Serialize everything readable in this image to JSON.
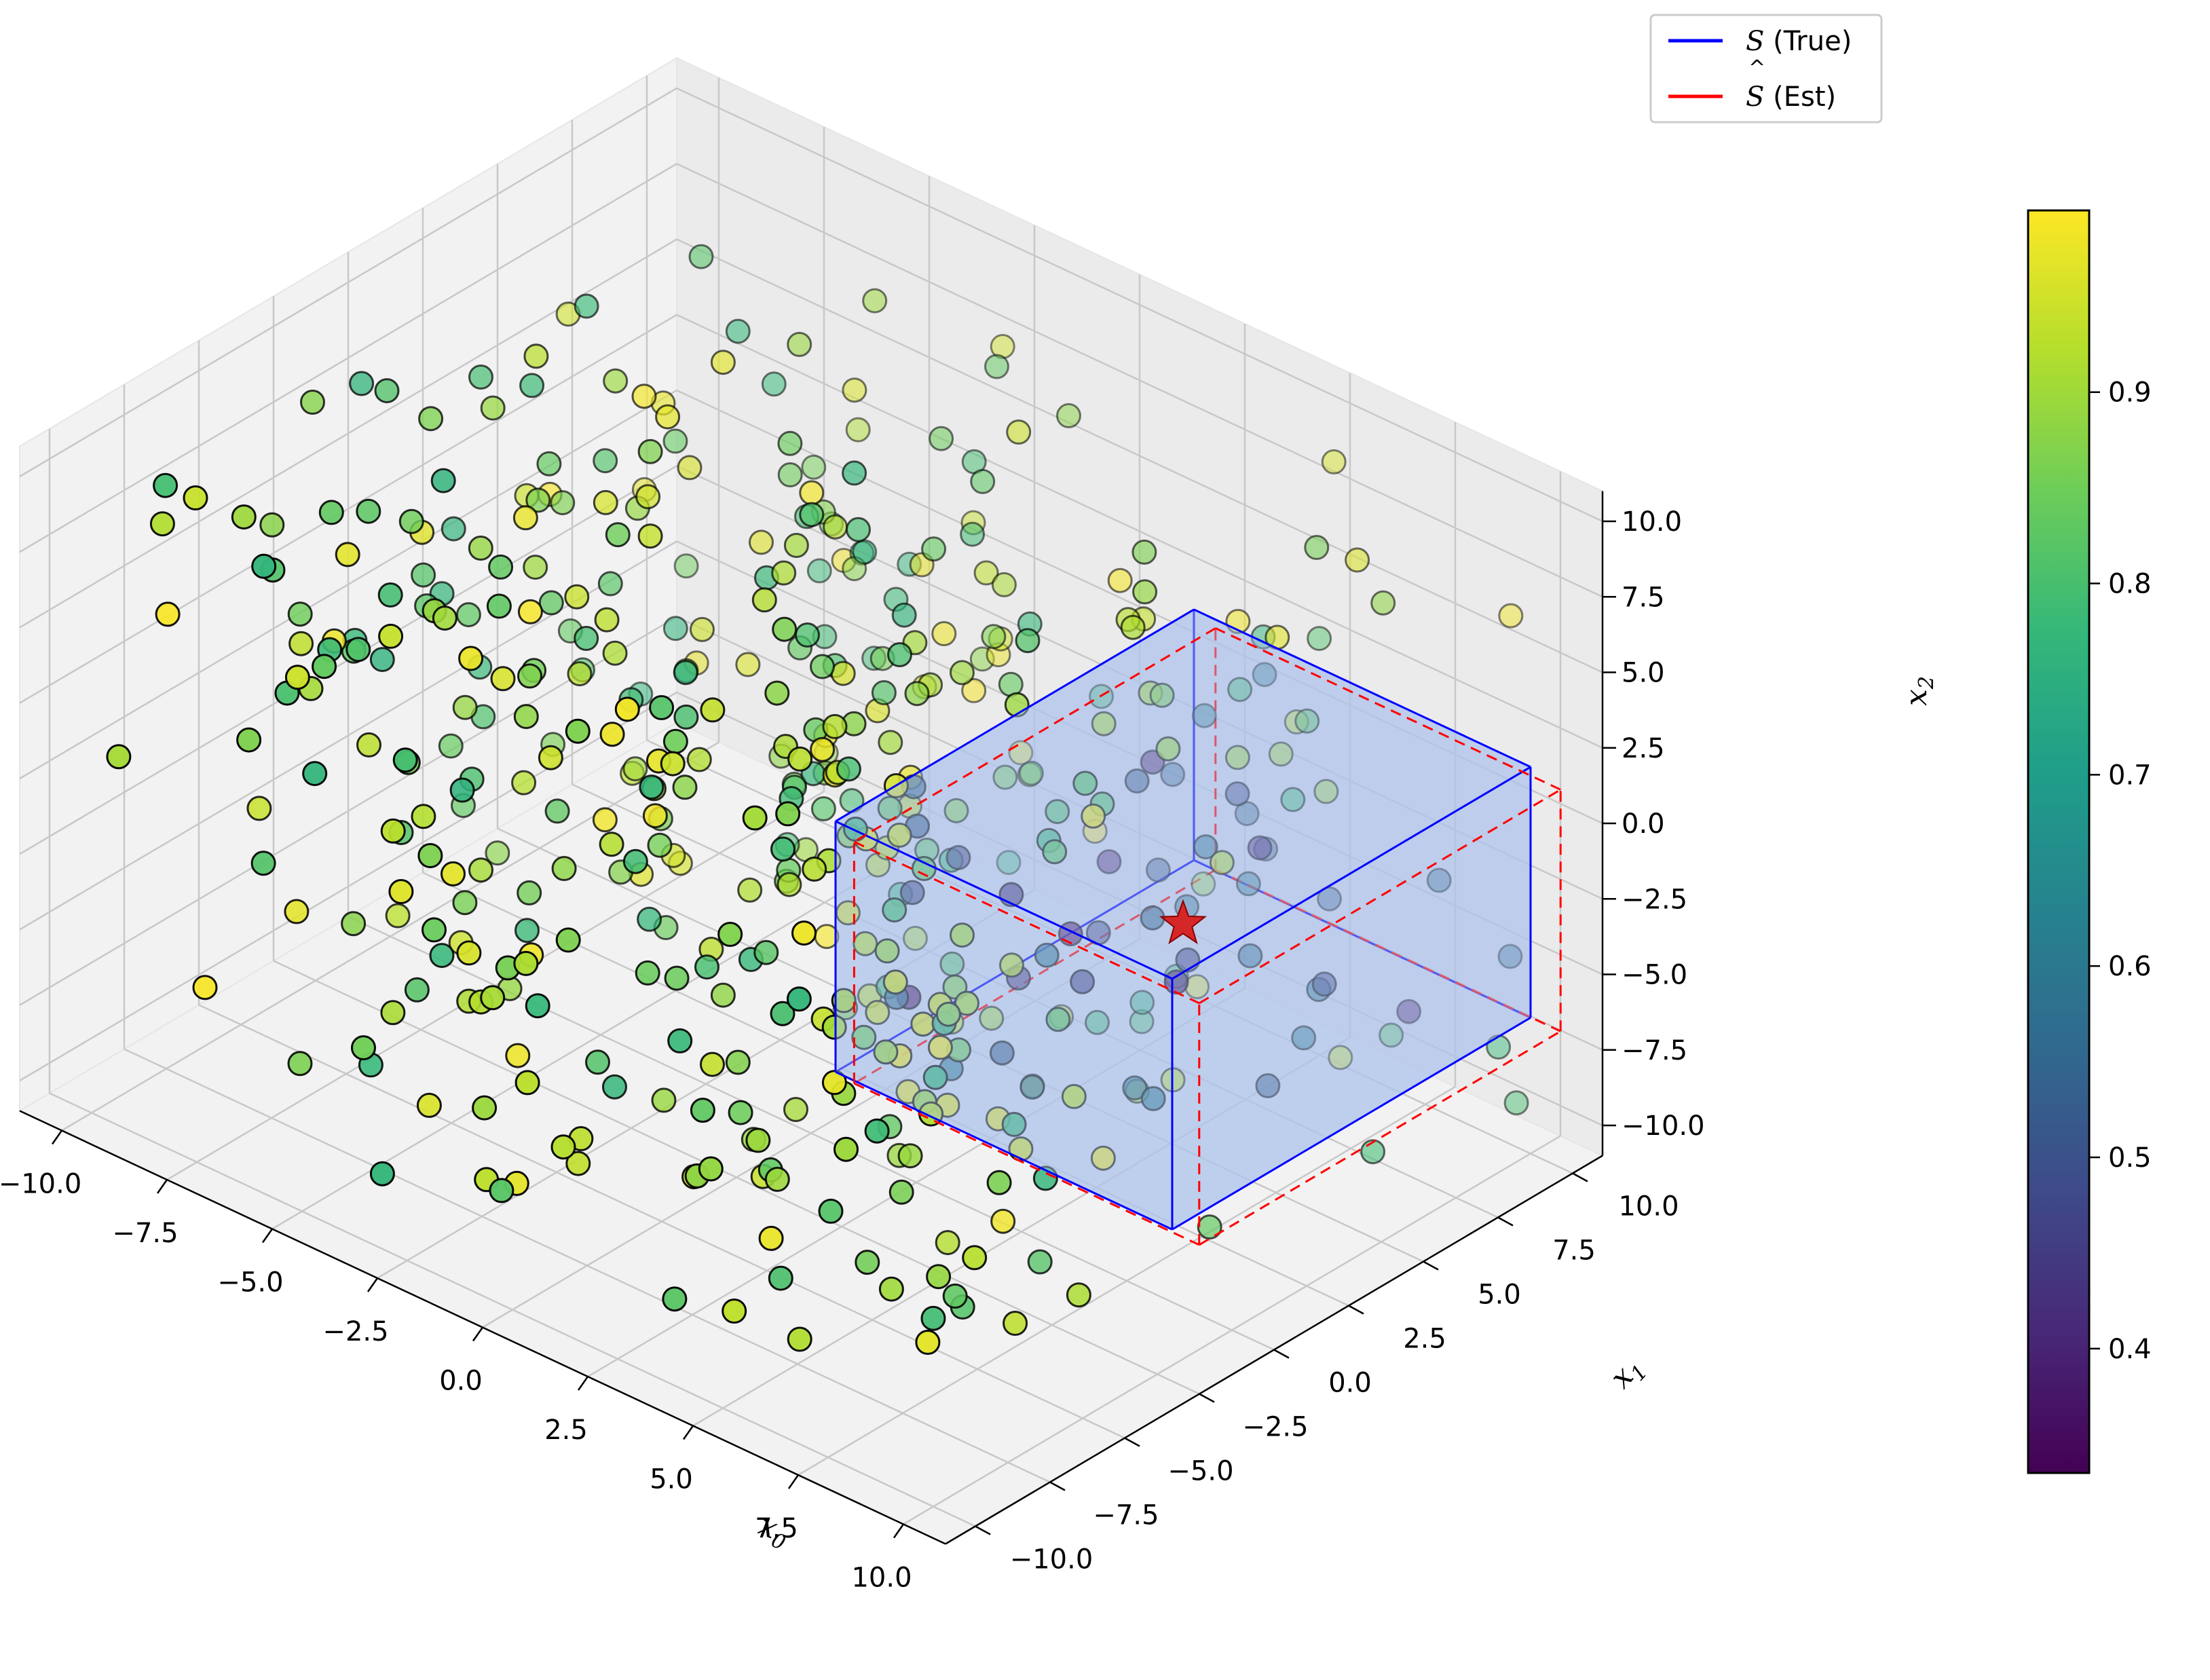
{
  "chart_data": {
    "type": "scatter",
    "projection": "3d",
    "axes": {
      "x": {
        "label": "x0",
        "label_main": "x",
        "label_sub": "0",
        "range": [
          -11,
          11
        ],
        "ticks": [
          -10.0,
          -7.5,
          -5.0,
          -2.5,
          0.0,
          2.5,
          5.0,
          7.5,
          10.0
        ],
        "tick_labels": [
          "−10.0",
          "−7.5",
          "−5.0",
          "−2.5",
          "0.0",
          "2.5",
          "5.0",
          "7.5",
          "10.0"
        ]
      },
      "y": {
        "label": "x1",
        "label_main": "x",
        "label_sub": "1",
        "range": [
          -11,
          11
        ],
        "ticks": [
          -10.0,
          -7.5,
          -5.0,
          -2.5,
          0.0,
          2.5,
          5.0,
          7.5,
          10.0
        ],
        "tick_labels": [
          "−10.0",
          "−7.5",
          "−5.0",
          "−2.5",
          "0.0",
          "2.5",
          "5.0",
          "7.5",
          "10.0"
        ]
      },
      "z": {
        "label": "x2",
        "label_main": "x",
        "label_sub": "2",
        "range": [
          -11,
          11
        ],
        "ticks": [
          -10.0,
          -7.5,
          -5.0,
          -2.5,
          0.0,
          2.5,
          5.0,
          7.5,
          10.0
        ],
        "tick_labels": [
          "−10.0",
          "−7.5",
          "−5.0",
          "−2.5",
          "0.0",
          "2.5",
          "5.0",
          "7.5",
          "10.0"
        ]
      }
    },
    "grid": true,
    "legend": {
      "placement": "top-right",
      "entries": [
        {
          "name": "S (True)",
          "main": "S",
          "suffix": " (True)",
          "color": "#0000ff",
          "linestyle": "solid"
        },
        {
          "name": "Ŝ (Est)",
          "main": "S",
          "suffix": " (Est)",
          "hat": true,
          "color": "#ff0000",
          "linestyle": "solid"
        }
      ]
    },
    "colorbar": {
      "colormap": "viridis",
      "range": [
        0.335,
        0.995
      ],
      "ticks": [
        0.4,
        0.5,
        0.6,
        0.7,
        0.8,
        0.9
      ],
      "tick_labels": [
        "0.4",
        "0.5",
        "0.6",
        "0.7",
        "0.8",
        "0.9"
      ]
    },
    "boxes": [
      {
        "name": "S (True)",
        "color": "#0000ff",
        "style": "solid",
        "fill": "#aec4ec",
        "x": [
          2.0,
          10.0
        ],
        "y": [
          -2.0,
          10.0
        ],
        "z": [
          -6.5,
          1.8
        ]
      },
      {
        "name": "Ŝ (Est)",
        "color": "#ff0000",
        "style": "dashed",
        "fill": null,
        "x": [
          2.3,
          10.5
        ],
        "y": [
          -1.8,
          10.3
        ],
        "z": [
          -6.8,
          1.2
        ]
      }
    ],
    "marker": {
      "shape": "star",
      "color": "#d62728",
      "x": 6.0,
      "y": 4.0,
      "z": -2.5
    },
    "scatter_points": {
      "n": 500,
      "x_range": [
        -10,
        10
      ],
      "y_range": [
        -10,
        10
      ],
      "z_range": [
        -10,
        10
      ],
      "value_range": [
        0.335,
        0.995
      ],
      "note_inside_box": "points inside S have low values (0.35–0.6)",
      "note_outside_box": "points outside S have values 0.75–0.99"
    }
  }
}
